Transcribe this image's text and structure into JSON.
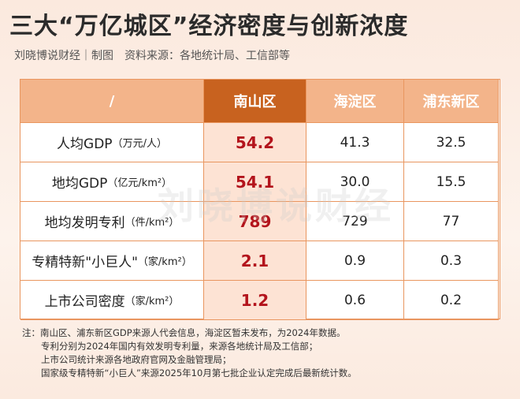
{
  "header": {
    "title": "三大“万亿城区”经济密度与创新浓度",
    "subtitle": "刘晓博说财经｜制图　资料来源：各地统计局、工信部等"
  },
  "table": {
    "columns": [
      "/",
      "南山区",
      "海淀区",
      "浦东新区"
    ],
    "rows": [
      {
        "name": "人均GDP",
        "unit": "（万元/人）",
        "values": [
          "54.2",
          "41.3",
          "32.5"
        ]
      },
      {
        "name": "地均GDP",
        "unit": "（亿元/km²）",
        "values": [
          "54.1",
          "30.0",
          "15.5"
        ]
      },
      {
        "name": "地均发明专利",
        "unit": "（件/km²）",
        "values": [
          "789",
          "729",
          "77"
        ]
      },
      {
        "name": "专精特新\"小巨人\"",
        "unit": "（家/km²）",
        "values": [
          "2.1",
          "0.9",
          "0.3"
        ]
      },
      {
        "name": "上市公司密度",
        "unit": "（家/km²）",
        "values": [
          "1.2",
          "0.6",
          "0.2"
        ]
      }
    ]
  },
  "watermark": "刘晓博说财经",
  "notes": [
    "注：南山区、浦东新区GDP来源人代会信息，海淀区暂未发布，为2024年数据。",
    "专利分别为2024年国内有效发明专利量，来源各地统计局及工信部；",
    "上市公司统计来源各地政府官网及金融管理局；",
    "国家级专精特新“小巨人”来源2025年10月第七批企业认定完成后最新统计数。"
  ]
}
